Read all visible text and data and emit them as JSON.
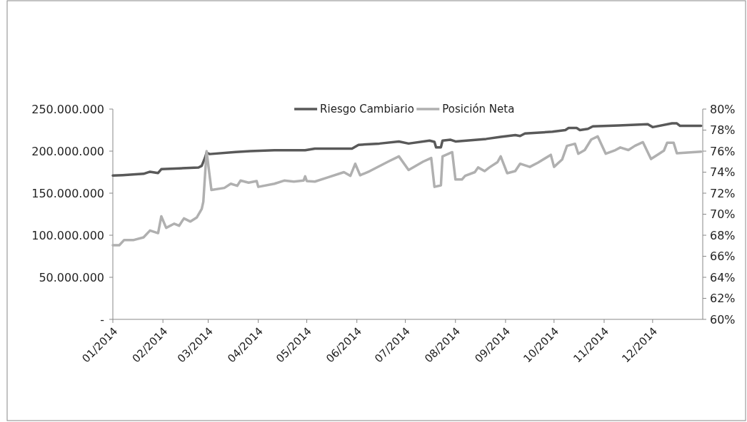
{
  "chart_data": {
    "type": "line",
    "xlim": [
      "2014-01-01",
      "2015-01-01"
    ],
    "xticks": [
      {
        "value": "2014-01-01",
        "label": "01/2014"
      },
      {
        "value": "2014-02-01",
        "label": "02/2014"
      },
      {
        "value": "2014-03-01",
        "label": "03/2014"
      },
      {
        "value": "2014-04-01",
        "label": "04/2014"
      },
      {
        "value": "2014-05-01",
        "label": "05/2014"
      },
      {
        "value": "2014-06-01",
        "label": "06/2014"
      },
      {
        "value": "2014-07-01",
        "label": "07/2014"
      },
      {
        "value": "2014-08-01",
        "label": "08/2014"
      },
      {
        "value": "2014-09-01",
        "label": "09/2014"
      },
      {
        "value": "2014-10-01",
        "label": "10/2014"
      },
      {
        "value": "2014-11-01",
        "label": "11/2014"
      },
      {
        "value": "2014-12-01",
        "label": "12/2014"
      }
    ],
    "ylim": [
      0,
      250000000
    ],
    "yticks": [
      {
        "value": 0,
        "label": "-"
      },
      {
        "value": 50000000,
        "label": "50.000.000"
      },
      {
        "value": 100000000,
        "label": "100.000.000"
      },
      {
        "value": 150000000,
        "label": "150.000.000"
      },
      {
        "value": 200000000,
        "label": "200.000.000"
      },
      {
        "value": 250000000,
        "label": "250.000.000"
      }
    ],
    "y2lim": [
      60,
      80
    ],
    "y2ticks": [
      {
        "value": 60,
        "label": "60%"
      },
      {
        "value": 62,
        "label": "62%"
      },
      {
        "value": 64,
        "label": "64%"
      },
      {
        "value": 66,
        "label": "66%"
      },
      {
        "value": 68,
        "label": "68%"
      },
      {
        "value": 70,
        "label": "70%"
      },
      {
        "value": 72,
        "label": "72%"
      },
      {
        "value": 74,
        "label": "74%"
      },
      {
        "value": 76,
        "label": "76%"
      },
      {
        "value": 78,
        "label": "78%"
      },
      {
        "value": 80,
        "label": "80%"
      }
    ],
    "grid": false,
    "legend": "top",
    "marker": "none",
    "line_style": "solid",
    "series": [
      {
        "name": "Riesgo Cambiario",
        "color": "#595959",
        "x": [
          "2014-01-01",
          "2014-01-07",
          "2014-01-20",
          "2014-01-24",
          "2014-01-29",
          "2014-01-31",
          "2014-02-11",
          "2014-02-23",
          "2014-02-25",
          "2014-02-27",
          "2014-02-28",
          "2014-03-02",
          "2014-03-18",
          "2014-03-27",
          "2014-04-11",
          "2014-04-30",
          "2014-05-06",
          "2014-05-29",
          "2014-06-02",
          "2014-06-15",
          "2014-06-27",
          "2014-07-03",
          "2014-07-16",
          "2014-07-19",
          "2014-07-20",
          "2014-07-23",
          "2014-07-24",
          "2014-07-29",
          "2014-08-01",
          "2014-08-20",
          "2014-08-29",
          "2014-09-07",
          "2014-09-10",
          "2014-09-13",
          "2014-09-30",
          "2014-10-08",
          "2014-10-10",
          "2014-10-15",
          "2014-10-17",
          "2014-10-22",
          "2014-10-25",
          "2014-11-10",
          "2014-11-28",
          "2014-12-01",
          "2014-12-13",
          "2014-12-16",
          "2014-12-18",
          "2014-12-31"
        ],
        "values": [
          171000000,
          171500000,
          173000000,
          175500000,
          174000000,
          178500000,
          179500000,
          180500000,
          182500000,
          192000000,
          198000000,
          196500000,
          199000000,
          200000000,
          201000000,
          201000000,
          203000000,
          203000000,
          207500000,
          209000000,
          211500000,
          209000000,
          212500000,
          211000000,
          204500000,
          204500000,
          212500000,
          213500000,
          211500000,
          214500000,
          217000000,
          219000000,
          218000000,
          221000000,
          223000000,
          225000000,
          227500000,
          227500000,
          225000000,
          226500000,
          229500000,
          230500000,
          232000000,
          228500000,
          233000000,
          233000000,
          230000000,
          230000000
        ]
      },
      {
        "name": "Posición Neta",
        "color": "#b0b0b0",
        "axis": "y2",
        "x": [
          "2014-01-01",
          "2014-01-05",
          "2014-01-08",
          "2014-01-14",
          "2014-01-20",
          "2014-01-24",
          "2014-01-29",
          "2014-01-31",
          "2014-02-03",
          "2014-02-08",
          "2014-02-11",
          "2014-02-14",
          "2014-02-18",
          "2014-02-22",
          "2014-02-25",
          "2014-02-26",
          "2014-02-28",
          "2014-03-03",
          "2014-03-11",
          "2014-03-15",
          "2014-03-19",
          "2014-03-21",
          "2014-03-26",
          "2014-03-31",
          "2014-04-01",
          "2014-04-11",
          "2014-04-17",
          "2014-04-23",
          "2014-04-29",
          "2014-04-30",
          "2014-05-01",
          "2014-05-06",
          "2014-05-14",
          "2014-05-24",
          "2014-05-28",
          "2014-05-31",
          "2014-06-03",
          "2014-06-09",
          "2014-06-21",
          "2014-06-27",
          "2014-07-03",
          "2014-07-12",
          "2014-07-17",
          "2014-07-19",
          "2014-07-23",
          "2014-07-24",
          "2014-07-30",
          "2014-08-01",
          "2014-08-05",
          "2014-08-07",
          "2014-08-13",
          "2014-08-15",
          "2014-08-19",
          "2014-08-22",
          "2014-08-27",
          "2014-08-29",
          "2014-09-02",
          "2014-09-07",
          "2014-09-10",
          "2014-09-16",
          "2014-09-21",
          "2014-09-29",
          "2014-10-01",
          "2014-10-06",
          "2014-10-09",
          "2014-10-14",
          "2014-10-16",
          "2014-10-20",
          "2014-10-24",
          "2014-10-28",
          "2014-11-02",
          "2014-11-08",
          "2014-11-11",
          "2014-11-16",
          "2014-11-20",
          "2014-11-25",
          "2014-11-30",
          "2014-12-05",
          "2014-12-08",
          "2014-12-10",
          "2014-12-14",
          "2014-12-16",
          "2014-12-31"
        ],
        "values": [
          67.05,
          67.05,
          67.55,
          67.55,
          67.8,
          68.45,
          68.2,
          69.8,
          68.7,
          69.1,
          68.9,
          69.6,
          69.3,
          69.7,
          70.5,
          71.2,
          76.0,
          72.3,
          72.5,
          72.9,
          72.7,
          73.2,
          73.0,
          73.15,
          72.6,
          72.9,
          73.2,
          73.1,
          73.2,
          73.6,
          73.15,
          73.1,
          73.5,
          74.0,
          73.65,
          74.8,
          73.7,
          74.1,
          75.05,
          75.5,
          74.2,
          75.0,
          75.35,
          72.6,
          72.75,
          75.5,
          75.9,
          73.3,
          73.3,
          73.65,
          74.0,
          74.45,
          74.1,
          74.45,
          74.95,
          75.5,
          73.9,
          74.1,
          74.8,
          74.5,
          74.9,
          75.65,
          74.5,
          75.2,
          76.5,
          76.7,
          75.75,
          76.1,
          77.1,
          77.4,
          75.75,
          76.1,
          76.35,
          76.1,
          76.5,
          76.85,
          75.25,
          75.75,
          76.05,
          76.8,
          76.8,
          75.8,
          75.95
        ]
      }
    ]
  }
}
